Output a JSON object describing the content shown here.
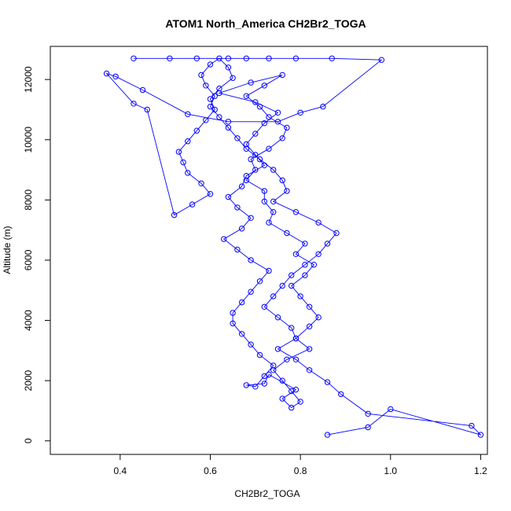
{
  "chart_data": {
    "type": "line",
    "title": "ATOM1 North_America CH2Br2_TOGA",
    "xlabel": "CH2Br2_TOGA",
    "ylabel": "Altitude (m)",
    "xlim": [
      0.245,
      1.215
    ],
    "ylim": [
      -450,
      13100
    ],
    "xticks": [
      0.4,
      0.6,
      0.8,
      1.0,
      1.2
    ],
    "xtick_labels": [
      "0.4",
      "0.6",
      "0.8",
      "1.0",
      "1.2"
    ],
    "yticks": [
      0,
      2000,
      4000,
      6000,
      8000,
      10000,
      12000
    ],
    "ytick_labels": [
      "0",
      "2000",
      "4000",
      "6000",
      "8000",
      "10000",
      "12000"
    ],
    "grid": false,
    "marker": "open-circle",
    "color": "#0000ff",
    "series": [
      {
        "x": [
          0.86,
          0.95,
          1.0,
          1.2,
          1.18,
          0.95,
          0.89,
          0.86,
          0.82,
          0.79,
          0.75,
          0.79,
          0.82,
          0.84,
          0.82,
          0.8,
          0.78,
          0.81,
          0.83,
          0.79,
          0.81,
          0.77,
          0.73,
          0.74,
          0.72,
          0.72,
          0.68,
          0.7,
          0.69,
          0.73,
          0.76,
          0.77,
          0.73,
          0.71,
          0.68,
          0.72,
          0.76,
          0.69,
          0.62,
          0.7,
          0.75,
          0.72,
          0.7,
          0.68,
          0.7,
          0.72,
          0.68,
          0.67,
          0.64,
          0.66,
          0.69,
          0.67,
          0.63,
          0.66,
          0.69,
          0.73,
          0.71,
          0.69,
          0.67,
          0.65,
          0.65,
          0.67,
          0.69,
          0.71,
          0.74,
          0.72,
          0.7,
          0.68,
          0.72,
          0.73,
          0.79,
          0.76,
          0.78,
          0.8,
          0.78,
          0.76,
          0.74,
          0.77,
          0.82,
          0.79,
          0.78,
          0.75,
          0.72,
          0.74,
          0.76,
          0.78,
          0.81,
          0.84,
          0.86,
          0.88,
          0.84,
          0.79,
          0.74,
          0.77,
          0.76,
          0.74,
          0.71,
          0.68,
          0.66,
          0.64,
          0.62,
          0.6,
          0.61,
          0.59,
          0.58,
          0.6,
          0.62,
          0.64,
          0.65,
          0.62,
          0.6,
          0.61,
          0.59,
          0.57,
          0.55,
          0.53,
          0.54,
          0.55,
          0.58,
          0.6,
          0.56,
          0.52,
          0.46,
          0.43,
          0.37,
          0.39,
          0.45,
          0.55,
          0.64,
          0.75,
          0.8,
          0.85,
          0.98,
          0.87,
          0.79,
          0.73,
          0.68,
          0.64,
          0.57,
          0.51,
          0.43
        ],
        "y": [
          200,
          450,
          1050,
          200,
          500,
          900,
          1550,
          1950,
          2350,
          2700,
          3050,
          3400,
          3800,
          4100,
          4450,
          4800,
          5150,
          5500,
          5850,
          6200,
          6550,
          6900,
          7250,
          7600,
          7950,
          8300,
          8650,
          9000,
          9350,
          9700,
          10050,
          10400,
          10750,
          11100,
          11450,
          11800,
          12150,
          11900,
          11550,
          11250,
          10900,
          10550,
          10200,
          9850,
          9500,
          9150,
          8800,
          8450,
          8100,
          7750,
          7400,
          7050,
          6700,
          6350,
          6000,
          5650,
          5300,
          4950,
          4600,
          4250,
          3900,
          3550,
          3200,
          2850,
          2500,
          2150,
          1800,
          1850,
          1900,
          2200,
          1700,
          1400,
          1100,
          1300,
          1650,
          2000,
          2350,
          2700,
          3050,
          3400,
          3750,
          4100,
          4450,
          4800,
          5150,
          5500,
          5850,
          6200,
          6550,
          6900,
          7250,
          7600,
          7950,
          8300,
          8650,
          9000,
          9350,
          9700,
          10050,
          10400,
          10750,
          11100,
          11450,
          11800,
          12150,
          12500,
          12700,
          12400,
          12050,
          11700,
          11350,
          11000,
          10650,
          10300,
          9950,
          9600,
          9250,
          8900,
          8550,
          8200,
          7850,
          7500,
          11000,
          11200,
          12200,
          12100,
          11650,
          10850,
          10600,
          10600,
          10900,
          11100,
          12650,
          12700,
          12700,
          12700,
          12700,
          12700,
          12700,
          12700,
          12700
        ]
      }
    ]
  }
}
